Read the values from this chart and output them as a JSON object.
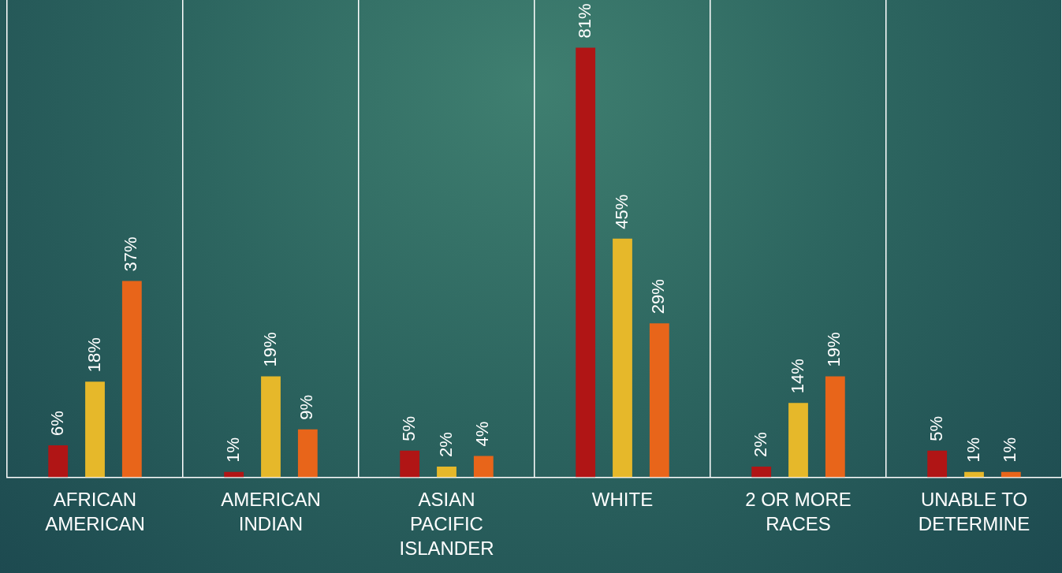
{
  "chart_data": {
    "type": "bar",
    "categories": [
      "AFRICAN AMERICAN",
      "AMERICAN INDIAN",
      "ASIAN PACIFIC ISLANDER",
      "WHITE",
      "2 OR MORE RACES",
      "UNABLE TO DETERMINE"
    ],
    "series": [
      {
        "color": "#b01515",
        "values": [
          6,
          1,
          5,
          81,
          2,
          5
        ],
        "value_labels": [
          "6%",
          "1%",
          "5%",
          "81%",
          "2%",
          "5%"
        ]
      },
      {
        "color": "#e6b82a",
        "values": [
          18,
          19,
          2,
          45,
          14,
          1
        ],
        "value_labels": [
          "18%",
          "19%",
          "2%",
          "45%",
          "14%",
          "1%"
        ]
      },
      {
        "color": "#e8651a",
        "values": [
          37,
          9,
          4,
          29,
          19,
          1
        ],
        "value_labels": [
          "37%",
          "9%",
          "4%",
          "29%",
          "19%",
          "1%"
        ]
      }
    ],
    "grid": "x",
    "legend": false
  }
}
